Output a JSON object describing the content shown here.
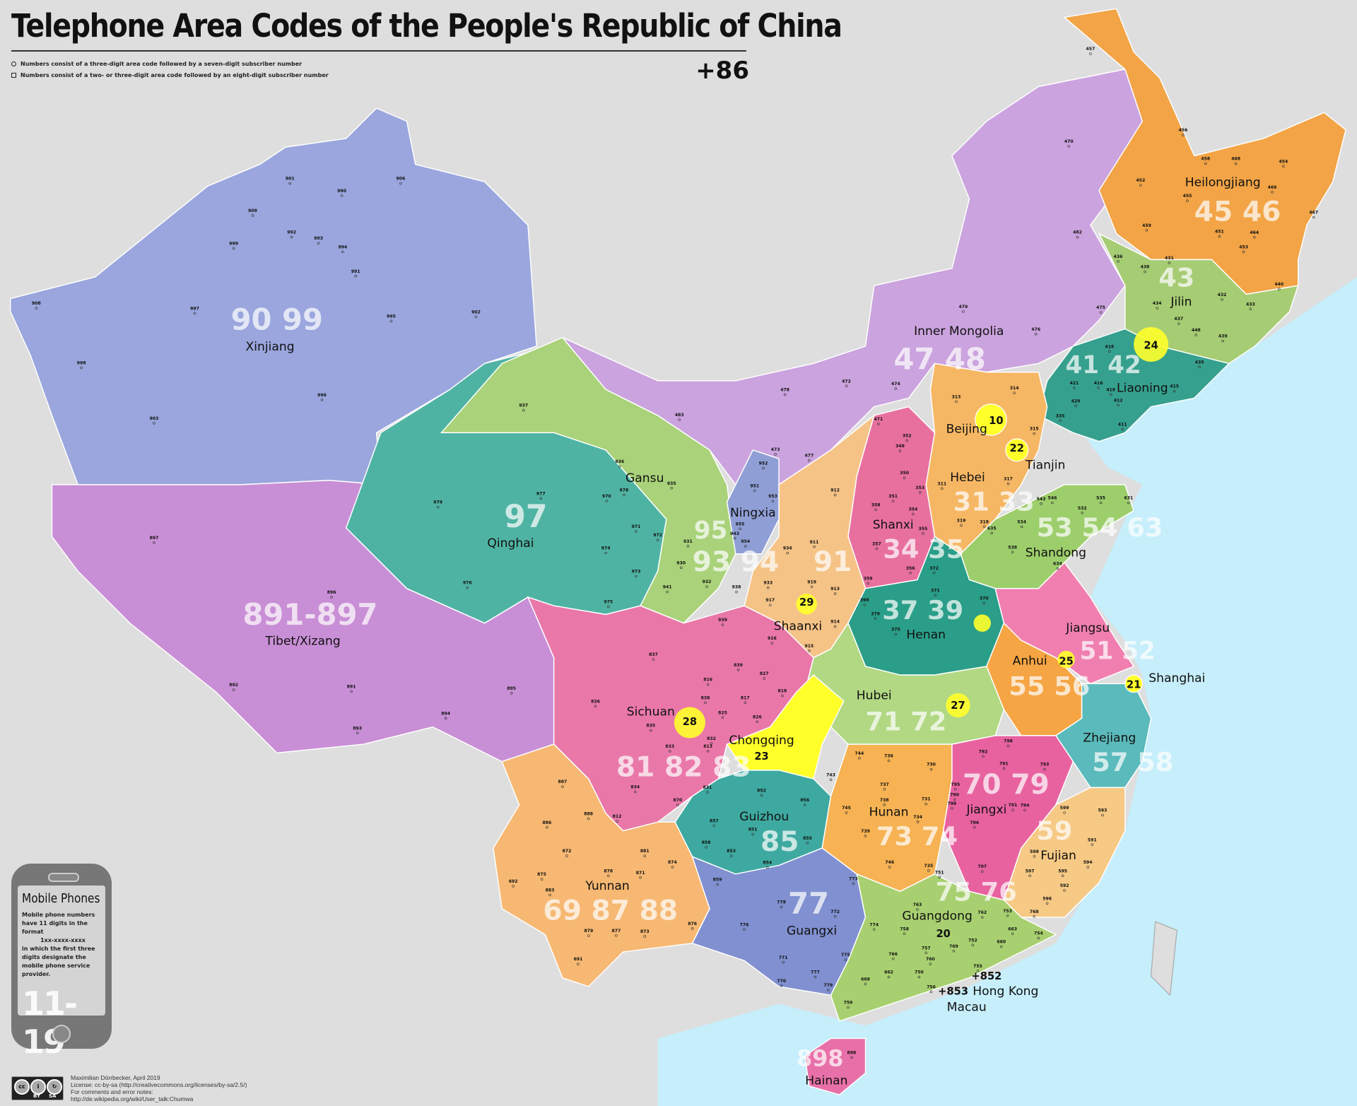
{
  "header": {
    "title": "Telephone Area Codes of the People's Republic of China",
    "country_code": "+86",
    "legend": [
      {
        "marker": "circle",
        "text": "Numbers consist of a three-digit area code followed by a seven-digit subscriber number"
      },
      {
        "marker": "square",
        "text": "Numbers consist of a two- or three-digit area code followed by an eight-digit subscriber number"
      }
    ]
  },
  "mobile": {
    "heading": "Mobile Phones",
    "text1": "Mobile phone numbers have 11 digits in the format",
    "format": "1xx-xxxx-xxxx",
    "text2": "in which the first three digits designate the mobile phone service provider.",
    "range": "11-19"
  },
  "credits": {
    "author": "Maximilian Dörrbecker, April 2019",
    "license": "License: cc-by-sa (http://creativecommons.org/licenses/by-sa/2.5/)",
    "comments": "For comments and error notes:",
    "link": "http://de.wikipedia.org/wiki/User_talk:Chumwa",
    "badge": {
      "by": "BY",
      "sa": "SA"
    }
  },
  "colors": {
    "sea": "#c6eefb",
    "foreign_land": "#dedede",
    "Xinjiang": "#9aa6dd",
    "Tibet": "#c98fd6",
    "Qinghai": "#4fb3a3",
    "Gansu": "#a9d27a",
    "InnerMongolia": "#cba3de",
    "Heilongjiang": "#f2a446",
    "Jilin": "#a6cc74",
    "Liaoning": "#36a08e",
    "Hebei": "#f6b764",
    "Shanxi": "#e8709f",
    "Shaanxi": "#f6c387",
    "Ningxia": "#8f9fd6",
    "Shandong": "#9dce6c",
    "Henan": "#2a9e88",
    "Jiangsu": "#f07fb0",
    "Anhui": "#f6a544",
    "Zhejiang": "#5bbabb",
    "Hubei": "#b2d883",
    "Chongqing": "#ffff2a",
    "Sichuan": "#e978a8",
    "Guizhou": "#3ea9a0",
    "Hunan": "#f6b253",
    "Jiangxi": "#e862a0",
    "Fujian": "#f6c985",
    "Yunnan": "#f6b872",
    "Guangxi": "#8090d0",
    "Guangdong": "#a8d070",
    "Hainan": "#e870a8",
    "municipality": "#ffff2a"
  },
  "provinces": [
    {
      "name": "Xinjiang",
      "codes": "90 99"
    },
    {
      "name": "Tibet/Xizang",
      "codes": "891-897"
    },
    {
      "name": "Qinghai",
      "codes": "97"
    },
    {
      "name": "Gansu",
      "codes": "93 94"
    },
    {
      "name": "Inner Mongolia",
      "codes": "47 48"
    },
    {
      "name": "Heilongjiang",
      "codes": "45 46"
    },
    {
      "name": "Jilin",
      "codes": "43"
    },
    {
      "name": "Liaoning",
      "codes": "41 42"
    },
    {
      "name": "Hebei",
      "codes": "31 33"
    },
    {
      "name": "Shanxi",
      "codes": "34 35"
    },
    {
      "name": "Shaanxi",
      "codes": "91"
    },
    {
      "name": "Ningxia",
      "codes": "95"
    },
    {
      "name": "Shandong",
      "codes": "53 54 63"
    },
    {
      "name": "Henan",
      "codes": "37 39"
    },
    {
      "name": "Jiangsu",
      "codes": "51 52"
    },
    {
      "name": "Anhui",
      "codes": "55 56"
    },
    {
      "name": "Zhejiang",
      "codes": "57 58"
    },
    {
      "name": "Hubei",
      "codes": "71 72"
    },
    {
      "name": "Sichuan",
      "codes": "81 82 83"
    },
    {
      "name": "Guizhou",
      "codes": "85"
    },
    {
      "name": "Hunan",
      "codes": "73 74"
    },
    {
      "name": "Jiangxi",
      "codes": "70 79"
    },
    {
      "name": "Fujian",
      "codes": "59"
    },
    {
      "name": "Yunnan",
      "codes": "69 87 88"
    },
    {
      "name": "Guangxi",
      "codes": "77"
    },
    {
      "name": "Guangdong",
      "codes": "75 76"
    },
    {
      "name": "Hainan",
      "codes": "898"
    }
  ],
  "municipalities": [
    {
      "name": "Beijing",
      "code": "10"
    },
    {
      "name": "Tianjin",
      "code": "22"
    },
    {
      "name": "Shanghai",
      "code": "21"
    },
    {
      "name": "Chongqing",
      "code": "23"
    },
    {
      "name": "Hong Kong",
      "code": "+852"
    },
    {
      "name": "Macau",
      "code": "+853"
    }
  ],
  "city_codes_bold": [
    "24",
    "25",
    "27",
    "28",
    "29",
    "20"
  ],
  "city_codes": [
    "457",
    "470",
    "456",
    "458",
    "468",
    "454",
    "452",
    "469",
    "455",
    "467",
    "464",
    "459",
    "451",
    "453",
    "440",
    "482",
    "436",
    "438",
    "431",
    "432",
    "434",
    "433",
    "437",
    "448",
    "439",
    "435",
    "479",
    "475",
    "476",
    "478",
    "472",
    "474",
    "471",
    "483",
    "477",
    "473",
    "937",
    "901",
    "906",
    "990",
    "909",
    "992",
    "993",
    "994",
    "999",
    "991",
    "908",
    "997",
    "995",
    "902",
    "998",
    "903",
    "996",
    "979",
    "977",
    "970",
    "978",
    "936",
    "935",
    "971",
    "972",
    "974",
    "973",
    "975",
    "976",
    "952",
    "951",
    "953",
    "955",
    "954",
    "943",
    "931",
    "930",
    "932",
    "933",
    "938",
    "941",
    "934",
    "939",
    "897",
    "896",
    "892",
    "891",
    "893",
    "894",
    "895",
    "313",
    "314",
    "315",
    "335",
    "416",
    "421",
    "429",
    "418",
    "419",
    "415",
    "412",
    "411",
    "352",
    "349",
    "350",
    "351",
    "353",
    "358",
    "354",
    "357",
    "355",
    "359",
    "356",
    "311",
    "317",
    "318",
    "319",
    "912",
    "911",
    "919",
    "913",
    "917",
    "914",
    "916",
    "915",
    "543",
    "546",
    "535",
    "631",
    "532",
    "534",
    "635",
    "538",
    "634",
    "371",
    "372",
    "379",
    "398",
    "375",
    "370",
    "837",
    "836",
    "839",
    "816",
    "827",
    "838",
    "818",
    "817",
    "825",
    "826",
    "835",
    "832",
    "833",
    "813",
    "831",
    "834",
    "812",
    "887",
    "888",
    "886",
    "872",
    "875",
    "883",
    "879",
    "691",
    "692",
    "878",
    "871",
    "881",
    "874",
    "877",
    "873",
    "876",
    "870",
    "857",
    "852",
    "856",
    "851",
    "858",
    "853",
    "854",
    "855",
    "859",
    "778",
    "772",
    "773",
    "774",
    "776",
    "771",
    "775",
    "777",
    "770",
    "779",
    "743",
    "744",
    "736",
    "730",
    "737",
    "739",
    "745",
    "738",
    "731",
    "746",
    "734",
    "735",
    "799",
    "790",
    "795",
    "792",
    "791",
    "798",
    "701",
    "793",
    "794",
    "796",
    "797",
    "599",
    "593",
    "598",
    "591",
    "597",
    "594",
    "595",
    "592",
    "596",
    "763",
    "751",
    "753",
    "762",
    "768",
    "758",
    "663",
    "660",
    "754",
    "752",
    "766",
    "769",
    "757",
    "750",
    "760",
    "662",
    "755",
    "756",
    "668",
    "759",
    "898"
  ]
}
